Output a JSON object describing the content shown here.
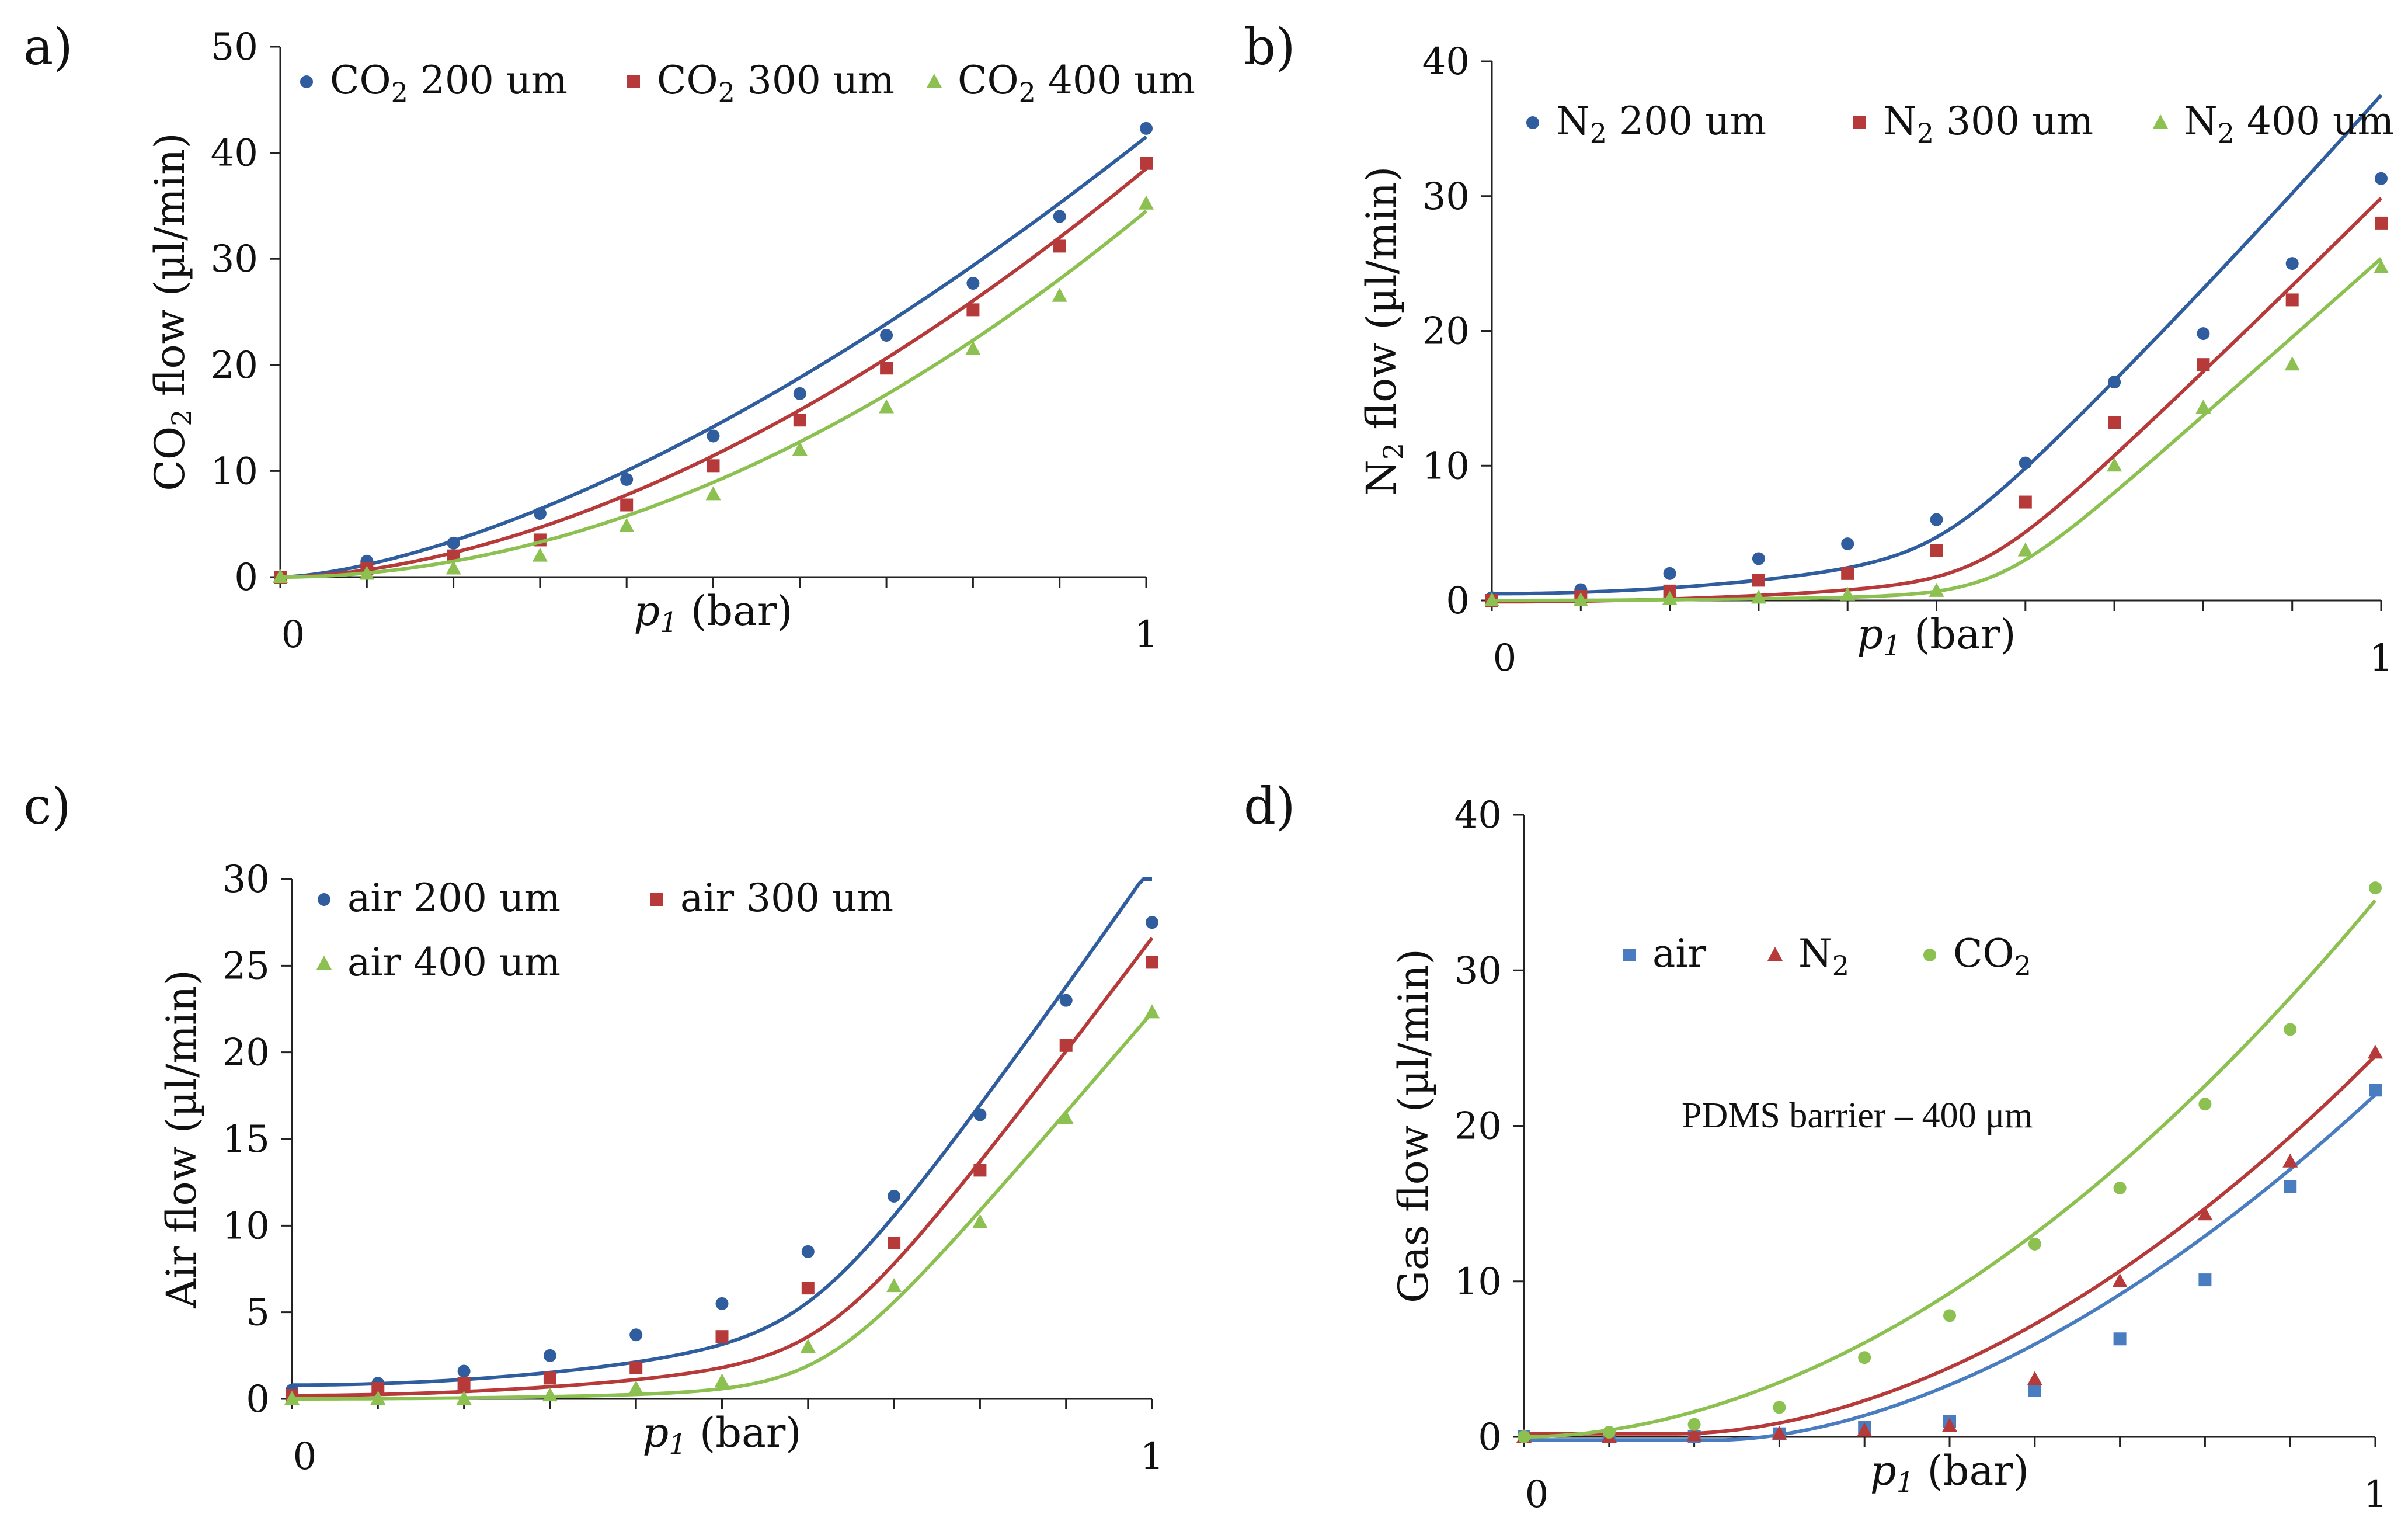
{
  "figure": {
    "colors": {
      "blue": "#2f5d9e",
      "red": "#b73a3a",
      "green": "#8cc152",
      "dark_blue": "#1f3f86"
    },
    "fit_colors": {
      "blue": "#1f4e94",
      "red": "#a3252c",
      "green": "#7fc241"
    }
  },
  "chart_data": [
    {
      "id": "a",
      "panel_label": "a)",
      "type": "scatter",
      "fit_lines": true,
      "title": "",
      "xlabel_main": "p",
      "xlabel_sub": "1",
      "xlabel_unit": " (bar)",
      "ylabel_main": "CO",
      "ylabel_sub": "2",
      "ylabel_rest": " flow (µl/min)",
      "xlim": [
        0,
        1
      ],
      "ylim": [
        0,
        50
      ],
      "xticks": [
        0,
        1
      ],
      "yticks": [
        0,
        10,
        20,
        30,
        40,
        50
      ],
      "legend": "top",
      "series": [
        {
          "name": "CO2 200 um",
          "label_main": "CO",
          "label_sub": "2",
          "label_rest": " 200 um",
          "marker": "circle",
          "color": "#2f5d9e",
          "x": [
            0,
            0.1,
            0.2,
            0.3,
            0.4,
            0.5,
            0.6,
            0.7,
            0.8,
            0.9,
            1.0
          ],
          "y": [
            0,
            1.5,
            3.2,
            6.0,
            9.2,
            13.3,
            17.3,
            22.8,
            27.7,
            34.0,
            42.3
          ],
          "fit": {
            "kind": "power",
            "a": 41.5,
            "p": 1.55,
            "c": 0
          }
        },
        {
          "name": "CO2 300 um",
          "label_main": "CO",
          "label_sub": "2",
          "label_rest": " 300 um",
          "marker": "square",
          "color": "#b73a3a",
          "x": [
            0,
            0.1,
            0.2,
            0.3,
            0.4,
            0.5,
            0.6,
            0.7,
            0.8,
            0.9,
            1.0
          ],
          "y": [
            0,
            0.8,
            2.0,
            3.5,
            6.8,
            10.5,
            14.8,
            19.7,
            25.2,
            31.2,
            39.0
          ],
          "fit": {
            "kind": "power",
            "a": 38.5,
            "p": 1.75,
            "c": 0
          }
        },
        {
          "name": "CO2 400 um",
          "label_main": "CO",
          "label_sub": "2",
          "label_rest": " 400 um",
          "marker": "triangle",
          "color": "#8cc152",
          "x": [
            0,
            0.1,
            0.2,
            0.3,
            0.4,
            0.5,
            0.6,
            0.7,
            0.8,
            0.9,
            1.0
          ],
          "y": [
            0,
            0.3,
            0.8,
            2.0,
            4.8,
            7.8,
            12.0,
            16.0,
            21.5,
            26.5,
            35.2
          ],
          "fit": {
            "kind": "power",
            "a": 34.5,
            "p": 1.95,
            "c": 0
          }
        }
      ]
    },
    {
      "id": "b",
      "panel_label": "b)",
      "type": "scatter",
      "fit_lines": true,
      "title": "",
      "xlabel_main": "p",
      "xlabel_sub": "1",
      "xlabel_unit": " (bar)",
      "ylabel_main": "N",
      "ylabel_sub": "2",
      "ylabel_rest": " flow (µl/min)",
      "xlim": [
        0,
        1
      ],
      "ylim": [
        0,
        40
      ],
      "xticks": [
        0,
        1
      ],
      "yticks": [
        0,
        10,
        20,
        30,
        40
      ],
      "legend": "top",
      "series": [
        {
          "name": "N2 200 um",
          "label_main": "N",
          "label_sub": "2",
          "label_rest": " 200 um",
          "marker": "circle",
          "color": "#2f5d9e",
          "x": [
            0,
            0.1,
            0.2,
            0.3,
            0.4,
            0.5,
            0.6,
            0.7,
            0.8,
            0.9,
            1.0
          ],
          "y": [
            0.2,
            0.8,
            2.0,
            3.1,
            4.2,
            6.0,
            10.2,
            16.2,
            19.8,
            25.0,
            31.3
          ],
          "fit": {
            "kind": "knee",
            "c": 0.5,
            "s": 11,
            "knee": 0.5,
            "m": 52,
            "sm": 0.04
          }
        },
        {
          "name": "N2 300 um",
          "label_main": "N",
          "label_sub": "2",
          "label_rest": " 300 um",
          "marker": "square",
          "color": "#b73a3a",
          "x": [
            0,
            0.1,
            0.2,
            0.3,
            0.4,
            0.5,
            0.6,
            0.7,
            0.8,
            0.9,
            1.0
          ],
          "y": [
            0,
            0.3,
            0.7,
            1.5,
            2.0,
            3.7,
            7.3,
            13.2,
            17.5,
            22.3,
            28.0
          ],
          "fit": {
            "kind": "knee",
            "c": -0.1,
            "s": 5.2,
            "knee": 0.55,
            "m": 55,
            "sm": 0.04
          }
        },
        {
          "name": "N2 400 um",
          "label_main": "N",
          "label_sub": "2",
          "label_rest": " 400 um",
          "marker": "triangle",
          "color": "#8cc152",
          "x": [
            0,
            0.1,
            0.2,
            0.3,
            0.4,
            0.5,
            0.6,
            0.7,
            0.8,
            0.9,
            1.0
          ],
          "y": [
            0,
            0,
            0.1,
            0.2,
            0.4,
            0.7,
            3.7,
            10.0,
            14.3,
            17.5,
            24.7
          ],
          "fit": {
            "kind": "knee",
            "c": 0,
            "s": 1.3,
            "knee": 0.57,
            "m": 56,
            "sm": 0.04
          }
        }
      ]
    },
    {
      "id": "c",
      "panel_label": "c)",
      "type": "scatter",
      "fit_lines": true,
      "title": "",
      "xlabel_main": "p",
      "xlabel_sub": "1",
      "xlabel_unit": " (bar)",
      "ylabel_main": "Air flow (µl/min)",
      "ylabel_sub": "",
      "ylabel_rest": "",
      "xlim": [
        0,
        1
      ],
      "ylim": [
        0,
        30
      ],
      "xticks": [
        0,
        1
      ],
      "yticks": [
        0,
        5,
        10,
        15,
        20,
        25,
        30
      ],
      "legend": "top-left",
      "series": [
        {
          "name": "air 200 um",
          "label_main": "air 200 um",
          "label_sub": "",
          "label_rest": "",
          "marker": "circle",
          "color": "#2f5d9e",
          "x": [
            0,
            0.1,
            0.2,
            0.3,
            0.4,
            0.5,
            0.6,
            0.7,
            0.8,
            0.9,
            1.0
          ],
          "y": [
            0.5,
            0.9,
            1.6,
            2.5,
            3.7,
            5.5,
            8.5,
            11.7,
            16.4,
            23.0,
            27.5
          ],
          "fit": {
            "kind": "knee",
            "c": 0.8,
            "s": 8,
            "knee": 0.6,
            "m": 55,
            "sm": 0.05
          }
        },
        {
          "name": "air 300 um",
          "label_main": "air 300 um",
          "label_sub": "",
          "label_rest": "",
          "marker": "square",
          "color": "#b73a3a",
          "x": [
            0,
            0.1,
            0.2,
            0.3,
            0.4,
            0.5,
            0.6,
            0.7,
            0.8,
            0.9,
            1.0
          ],
          "y": [
            0.2,
            0.6,
            0.9,
            1.2,
            1.8,
            3.6,
            6.4,
            9.0,
            13.2,
            20.4,
            25.2
          ],
          "fit": {
            "kind": "knee",
            "c": 0.2,
            "s": 5.5,
            "knee": 0.62,
            "m": 55,
            "sm": 0.05
          }
        },
        {
          "name": "air 400 um",
          "label_main": "air 400 um",
          "label_sub": "",
          "label_rest": "",
          "marker": "triangle",
          "color": "#8cc152",
          "x": [
            0,
            0.1,
            0.2,
            0.3,
            0.4,
            0.5,
            0.6,
            0.7,
            0.8,
            0.9,
            1.0
          ],
          "y": [
            0,
            0,
            0,
            0.2,
            0.6,
            1.0,
            3.0,
            6.5,
            10.2,
            16.2,
            22.3
          ],
          "fit": {
            "kind": "knee",
            "c": 0,
            "s": 1.4,
            "knee": 0.62,
            "m": 55,
            "sm": 0.05
          }
        }
      ]
    },
    {
      "id": "d",
      "panel_label": "d)",
      "type": "scatter",
      "fit_lines": true,
      "title": "",
      "annotation": "PDMS barrier – 400 μm",
      "xlabel_main": "p",
      "xlabel_sub": "1",
      "xlabel_unit": " (bar)",
      "ylabel_main": "Gas flow (µl/min)",
      "ylabel_sub": "",
      "ylabel_rest": "",
      "xlim": [
        0,
        1
      ],
      "ylim": [
        0,
        40
      ],
      "xticks": [
        0,
        1
      ],
      "yticks": [
        0,
        10,
        20,
        30,
        40
      ],
      "legend": "top-left",
      "series": [
        {
          "name": "air",
          "label_main": "air",
          "label_sub": "",
          "label_rest": "",
          "marker": "square",
          "color": "#4a7dbf",
          "x": [
            0,
            0.1,
            0.2,
            0.3,
            0.4,
            0.5,
            0.6,
            0.7,
            0.8,
            0.9,
            1.0
          ],
          "y": [
            0,
            0,
            0,
            0.2,
            0.6,
            1.0,
            3.0,
            6.3,
            10.1,
            16.1,
            22.3
          ],
          "fit": {
            "kind": "shift_power",
            "a": 22.2,
            "x0": 0.23,
            "p": 1.75,
            "c": -0.2
          }
        },
        {
          "name": "N2",
          "label_main": "N",
          "label_sub": "2",
          "label_rest": "",
          "marker": "triangle",
          "color": "#b73a3a",
          "x": [
            0,
            0.1,
            0.2,
            0.3,
            0.4,
            0.5,
            0.6,
            0.7,
            0.8,
            0.9,
            1.0
          ],
          "y": [
            0,
            0,
            0.1,
            0.2,
            0.4,
            0.7,
            3.7,
            10.0,
            14.3,
            17.7,
            24.7
          ],
          "fit": {
            "kind": "shift_power",
            "a": 24.3,
            "x0": 0.18,
            "p": 1.85,
            "c": 0.2
          }
        },
        {
          "name": "CO2",
          "label_main": "CO",
          "label_sub": "2",
          "label_rest": "",
          "marker": "circle",
          "color": "#8cc152",
          "x": [
            0,
            0.1,
            0.2,
            0.3,
            0.4,
            0.5,
            0.6,
            0.7,
            0.8,
            0.9,
            1.0
          ],
          "y": [
            0,
            0.3,
            0.8,
            1.9,
            5.1,
            7.8,
            12.4,
            16.0,
            21.4,
            26.2,
            35.3
          ],
          "fit": {
            "kind": "power",
            "a": 34.5,
            "p": 1.9,
            "c": 0
          }
        }
      ]
    }
  ]
}
